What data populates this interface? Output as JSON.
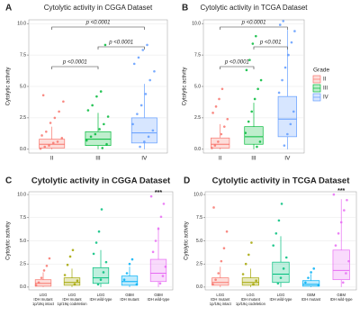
{
  "chart_data": [
    {
      "type": "box",
      "panel": "A",
      "title": "Cytolytic activity in CGGA Dataset",
      "y_label": "Cytolytic activity",
      "ylim": [
        -0.3,
        10.3
      ],
      "yticks": [
        {
          "value": 0,
          "label": "0.0"
        },
        {
          "value": 2.5,
          "label": "2.5"
        },
        {
          "value": 5,
          "label": "5.0"
        },
        {
          "value": 7.5,
          "label": "7.5"
        },
        {
          "value": 10,
          "label": "10.0"
        }
      ],
      "categories": [
        [
          "II"
        ],
        [
          "III"
        ],
        [
          "IV"
        ]
      ],
      "boxes": [
        {
          "color": "#f8766d",
          "whisker_low": 0,
          "q1": 0.1,
          "median": 0.4,
          "q3": 0.8,
          "whisker_high": 1.8,
          "points": [
            0.05,
            0.2,
            0.3,
            0.5,
            0.6,
            0.9,
            1.1,
            1.4,
            2.1,
            2.5,
            3.0,
            3.8,
            4.3
          ]
        },
        {
          "color": "#00ba38",
          "whisker_low": 0,
          "q1": 0.3,
          "median": 0.8,
          "q3": 1.4,
          "whisker_high": 2.9,
          "points": [
            0.1,
            0.4,
            0.7,
            1.0,
            1.2,
            1.6,
            2.0,
            2.6,
            3.1,
            3.5,
            4.2,
            4.6,
            8.3
          ]
        },
        {
          "color": "#619cff",
          "whisker_low": 0,
          "q1": 0.5,
          "median": 1.3,
          "q3": 2.5,
          "whisker_high": 5.2,
          "points": [
            0.2,
            0.6,
            1.0,
            1.5,
            2.0,
            2.8,
            3.5,
            4.4,
            5.5,
            6.2,
            6.8,
            7.3,
            7.9,
            8.3
          ]
        }
      ],
      "comparisons": [
        {
          "from": 0,
          "to": 2,
          "label": "p <0.0001"
        },
        {
          "from": 1,
          "to": 2,
          "label": "p <0.0001"
        },
        {
          "from": 0,
          "to": 1,
          "label": "p <0.0001"
        }
      ]
    },
    {
      "type": "box",
      "panel": "B",
      "title": "Cytolytic activity in TCGA Dataset",
      "y_label": "Cytolytic activity",
      "ylim": [
        -0.3,
        10.3
      ],
      "yticks": [
        {
          "value": 0,
          "label": "0.0"
        },
        {
          "value": 2.5,
          "label": "2.5"
        },
        {
          "value": 5,
          "label": "5.0"
        },
        {
          "value": 7.5,
          "label": "7.5"
        },
        {
          "value": 10,
          "label": "10.0"
        }
      ],
      "categories": [
        [
          "II"
        ],
        [
          "III"
        ],
        [
          "IV"
        ]
      ],
      "boxes": [
        {
          "color": "#f8766d",
          "whisker_low": 0,
          "q1": 0.1,
          "median": 0.4,
          "q3": 0.9,
          "whisker_high": 2.0,
          "points": [
            0.1,
            0.3,
            0.6,
            1.2,
            1.8,
            2.4,
            2.9,
            3.4,
            4.0,
            4.8
          ]
        },
        {
          "color": "#00ba38",
          "whisker_low": 0,
          "q1": 0.4,
          "median": 1.0,
          "q3": 1.8,
          "whisker_high": 3.7,
          "points": [
            0.2,
            0.6,
            1.3,
            2.2,
            3.0,
            4.0,
            4.8,
            5.5,
            6.3,
            7.1,
            8.4,
            9.0
          ]
        },
        {
          "color": "#619cff",
          "whisker_low": 0,
          "q1": 1.0,
          "median": 2.4,
          "q3": 4.2,
          "whisker_high": 9.5,
          "points": [
            0.3,
            1.2,
            2.0,
            3.0,
            4.5,
            5.5,
            6.5,
            7.5,
            8.5,
            9.4,
            9.9,
            10.2
          ]
        }
      ],
      "comparisons": [
        {
          "from": 0,
          "to": 2,
          "label": "p <0.0001"
        },
        {
          "from": 1,
          "to": 2,
          "label": "p <0.001"
        },
        {
          "from": 0,
          "to": 1,
          "label": "p <0.0001"
        }
      ],
      "legend": {
        "title": "Grade",
        "items": [
          "II",
          "III",
          "IV"
        ]
      }
    },
    {
      "type": "box",
      "panel": "C",
      "title": "Cytolytic activity in CGGA Dataset",
      "y_label": "Cytolytic activity",
      "ylim": [
        -0.3,
        10.3
      ],
      "yticks": [
        {
          "value": 0,
          "label": "0.0"
        },
        {
          "value": 2.5,
          "label": "2.5"
        },
        {
          "value": 5,
          "label": "5.0"
        },
        {
          "value": 7.5,
          "label": "7.5"
        },
        {
          "value": 10,
          "label": "10.0"
        }
      ],
      "categories": [
        [
          "LGG",
          "IDH mutant",
          "1p/19q intact"
        ],
        [
          "LGG",
          "IDH mutant",
          "1p/19q codeletion"
        ],
        [
          "LGG",
          "IDH wild-type"
        ],
        [
          "GBM",
          "IDH mutant"
        ],
        [
          "GBM",
          "IDH wild-type"
        ]
      ],
      "boxes": [
        {
          "color": "#f8766d",
          "whisker_low": 0,
          "q1": 0.1,
          "median": 0.4,
          "q3": 0.8,
          "whisker_high": 1.6,
          "points": [
            0.2,
            0.5,
            1.0,
            1.8,
            2.3,
            3.1
          ]
        },
        {
          "color": "#a3a500",
          "whisker_low": 0,
          "q1": 0.2,
          "median": 0.5,
          "q3": 1.0,
          "whisker_high": 2.0,
          "points": [
            0.3,
            0.7,
            1.3,
            2.4,
            3.3,
            4.0
          ]
        },
        {
          "color": "#00bf7d",
          "whisker_low": 0,
          "q1": 0.4,
          "median": 1.0,
          "q3": 2.1,
          "whisker_high": 4.0,
          "points": [
            0.3,
            0.8,
            1.6,
            2.7,
            3.6,
            4.8,
            6.0,
            8.4
          ]
        },
        {
          "color": "#00b0f6",
          "whisker_low": 0,
          "q1": 0.2,
          "median": 0.6,
          "q3": 1.2,
          "whisker_high": 2.2,
          "points": [
            0.3,
            0.8,
            1.5,
            2.5,
            3.0
          ]
        },
        {
          "color": "#e76bf3",
          "whisker_low": 0,
          "q1": 0.6,
          "median": 1.5,
          "q3": 3.0,
          "whisker_high": 6.5,
          "points": [
            0.4,
            1.2,
            2.2,
            3.8,
            5.0,
            6.3,
            7.6,
            9.0,
            9.8
          ]
        }
      ],
      "annotation": {
        "category": 4,
        "label": "***"
      }
    },
    {
      "type": "box",
      "panel": "D",
      "title": "Cytolytic activity in TCGA Dataset",
      "y_label": "Cytolytic activity",
      "ylim": [
        -0.3,
        10.3
      ],
      "yticks": [
        {
          "value": 0,
          "label": "0.0"
        },
        {
          "value": 2.5,
          "label": "2.5"
        },
        {
          "value": 5,
          "label": "5.0"
        },
        {
          "value": 7.5,
          "label": "7.5"
        },
        {
          "value": 10,
          "label": "10.0"
        }
      ],
      "categories": [
        [
          "LGG",
          "IDH mutant",
          "1p/19q intact"
        ],
        [
          "LGG",
          "IDH mutant",
          "1p/19q codeletion"
        ],
        [
          "LGG",
          "IDH wild-type"
        ],
        [
          "GBM",
          "IDH mutant"
        ],
        [
          "GBM",
          "IDH wild-type"
        ]
      ],
      "boxes": [
        {
          "color": "#f8766d",
          "whisker_low": 0,
          "q1": 0.2,
          "median": 0.5,
          "q3": 1.0,
          "whisker_high": 2.2,
          "points": [
            0.3,
            0.8,
            1.5,
            2.8,
            4.2,
            6.0,
            8.6
          ]
        },
        {
          "color": "#a3a500",
          "whisker_low": 0,
          "q1": 0.2,
          "median": 0.5,
          "q3": 1.0,
          "whisker_high": 2.0,
          "points": [
            0.3,
            0.7,
            1.4,
            2.5,
            3.5,
            4.8
          ]
        },
        {
          "color": "#00bf7d",
          "whisker_low": 0,
          "q1": 0.5,
          "median": 1.4,
          "q3": 2.7,
          "whisker_high": 5.5,
          "points": [
            0.4,
            1.0,
            2.0,
            3.2,
            4.5,
            5.8,
            7.2,
            9.0
          ]
        },
        {
          "color": "#00b0f6",
          "whisker_low": 0,
          "q1": 0.1,
          "median": 0.3,
          "q3": 0.7,
          "whisker_high": 1.4,
          "points": [
            0.2,
            0.5,
            1.0,
            1.6,
            2.0
          ]
        },
        {
          "color": "#e76bf3",
          "whisker_low": 0,
          "q1": 0.8,
          "median": 1.8,
          "q3": 4.0,
          "whisker_high": 9.5,
          "points": [
            0.5,
            1.5,
            2.8,
            4.5,
            5.8,
            7.0,
            8.3,
            9.4,
            10.0
          ]
        }
      ],
      "annotation": {
        "category": 4,
        "label": "***"
      }
    }
  ]
}
